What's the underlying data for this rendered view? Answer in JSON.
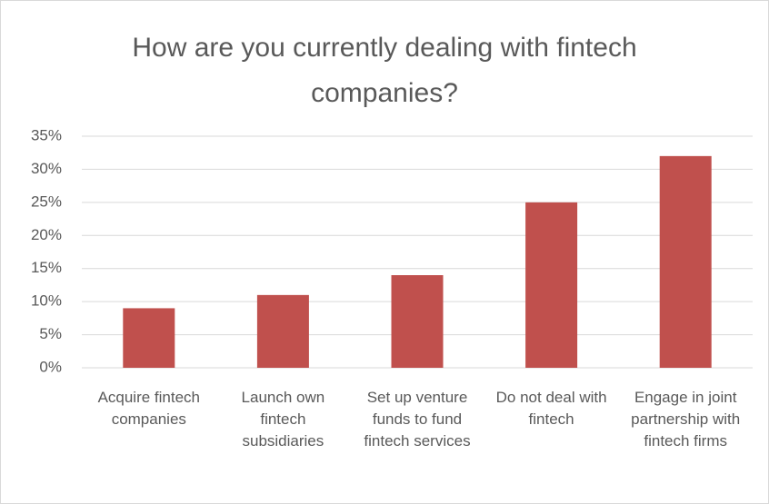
{
  "chart_data": {
    "type": "bar",
    "title": "How are you currently dealing with fintech companies?",
    "categories": [
      "Acquire fintech companies",
      "Launch own fintech subsidiaries",
      "Set up venture funds to fund fintech services",
      "Do not deal with fintech",
      "Engage in joint partnership with fintech firms"
    ],
    "values": [
      9,
      11,
      14,
      25,
      32
    ],
    "color": "#c0504d",
    "ylim": [
      0,
      35
    ],
    "yticks": [
      {
        "value": 0,
        "label": "0%"
      },
      {
        "value": 5,
        "label": "5%"
      },
      {
        "value": 10,
        "label": "10%"
      },
      {
        "value": 15,
        "label": "15%"
      },
      {
        "value": 20,
        "label": "20%"
      },
      {
        "value": 25,
        "label": "25%"
      },
      {
        "value": 30,
        "label": "30%"
      },
      {
        "value": 35,
        "label": "35%"
      }
    ],
    "grid": true
  }
}
